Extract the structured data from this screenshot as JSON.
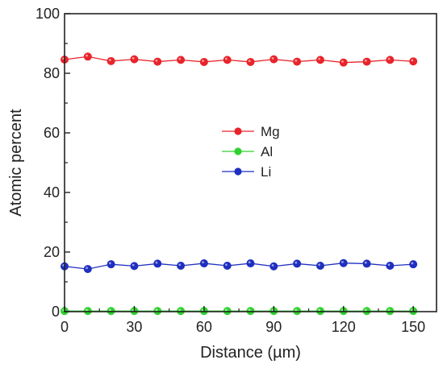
{
  "chart_data": {
    "type": "line",
    "title": "",
    "xlabel": "Distance (µm)",
    "ylabel": "Atomic percent",
    "xlim": [
      0,
      160
    ],
    "ylim": [
      0,
      100
    ],
    "xticks": [
      0,
      30,
      60,
      90,
      120,
      150
    ],
    "yticks": [
      0,
      20,
      40,
      60,
      80,
      100
    ],
    "grid": false,
    "legend_position": "center",
    "x": [
      0,
      10,
      20,
      30,
      40,
      50,
      60,
      70,
      80,
      90,
      100,
      110,
      120,
      130,
      140,
      150
    ],
    "series": [
      {
        "name": "Mg",
        "color": "#e8242b",
        "values": [
          84.6,
          85.6,
          84.1,
          84.7,
          83.9,
          84.5,
          83.8,
          84.5,
          83.8,
          84.7,
          83.9,
          84.5,
          83.6,
          83.9,
          84.5,
          84.0
        ]
      },
      {
        "name": "Al",
        "color": "#2ed12e",
        "values": [
          0.2,
          0.2,
          0.2,
          0.2,
          0.2,
          0.2,
          0.2,
          0.2,
          0.2,
          0.2,
          0.2,
          0.2,
          0.2,
          0.2,
          0.2,
          0.2
        ]
      },
      {
        "name": "Li",
        "color": "#1f2fbf",
        "values": [
          15.2,
          14.3,
          15.9,
          15.3,
          16.1,
          15.4,
          16.2,
          15.4,
          16.2,
          15.2,
          16.1,
          15.4,
          16.3,
          16.1,
          15.4,
          15.9
        ]
      }
    ]
  }
}
